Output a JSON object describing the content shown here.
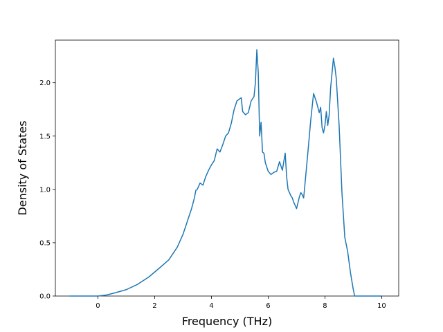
{
  "chart_data": {
    "type": "line",
    "title": "",
    "xlabel": "Frequency (THz)",
    "ylabel": "Density of States",
    "xlim": [
      -1.5,
      10.6
    ],
    "ylim": [
      0.0,
      2.4
    ],
    "grid": false,
    "xticks": [
      0,
      2,
      4,
      6,
      8,
      10
    ],
    "yticks": [
      0.0,
      0.5,
      1.0,
      1.5,
      2.0
    ],
    "xtick_labels": [
      "0",
      "2",
      "4",
      "6",
      "8",
      "10"
    ],
    "ytick_labels": [
      "0.0",
      "0.5",
      "1.0",
      "1.5",
      "2.0"
    ],
    "series": [
      {
        "color": "#1f77b4",
        "x": [
          -1.0,
          -0.5,
          0.0,
          0.3,
          0.6,
          1.0,
          1.4,
          1.8,
          2.2,
          2.5,
          2.8,
          3.0,
          3.2,
          3.3,
          3.4,
          3.45,
          3.5,
          3.6,
          3.7,
          3.8,
          3.9,
          4.0,
          4.1,
          4.2,
          4.3,
          4.4,
          4.5,
          4.6,
          4.7,
          4.8,
          4.9,
          5.05,
          5.1,
          5.2,
          5.3,
          5.4,
          5.5,
          5.55,
          5.6,
          5.65,
          5.7,
          5.75,
          5.8,
          5.85,
          5.9,
          6.0,
          6.1,
          6.2,
          6.3,
          6.4,
          6.5,
          6.6,
          6.65,
          6.7,
          6.8,
          6.85,
          6.9,
          7.0,
          7.1,
          7.15,
          7.2,
          7.25,
          7.3,
          7.4,
          7.5,
          7.6,
          7.7,
          7.8,
          7.85,
          7.9,
          7.95,
          8.0,
          8.05,
          8.1,
          8.15,
          8.2,
          8.3,
          8.35,
          8.4,
          8.5,
          8.6,
          8.7,
          8.8,
          8.9,
          9.0,
          9.05,
          9.1,
          9.2,
          9.5,
          10.0
        ],
        "values": [
          0.0,
          0.0,
          0.0,
          0.01,
          0.03,
          0.06,
          0.11,
          0.18,
          0.27,
          0.34,
          0.46,
          0.58,
          0.74,
          0.82,
          0.92,
          0.99,
          1.0,
          1.06,
          1.04,
          1.12,
          1.18,
          1.23,
          1.27,
          1.38,
          1.35,
          1.42,
          1.5,
          1.53,
          1.62,
          1.75,
          1.83,
          1.86,
          1.73,
          1.7,
          1.72,
          1.83,
          1.87,
          2.0,
          2.31,
          2.1,
          1.5,
          1.63,
          1.35,
          1.34,
          1.25,
          1.17,
          1.14,
          1.16,
          1.17,
          1.26,
          1.18,
          1.34,
          1.12,
          1.0,
          0.94,
          0.92,
          0.88,
          0.82,
          0.93,
          0.97,
          0.95,
          0.92,
          1.06,
          1.35,
          1.65,
          1.9,
          1.82,
          1.72,
          1.77,
          1.58,
          1.53,
          1.6,
          1.73,
          1.6,
          1.7,
          1.95,
          2.23,
          2.15,
          2.04,
          1.6,
          0.97,
          0.55,
          0.42,
          0.22,
          0.06,
          0.0,
          0.0,
          0.0,
          0.0,
          0.0
        ]
      }
    ]
  }
}
